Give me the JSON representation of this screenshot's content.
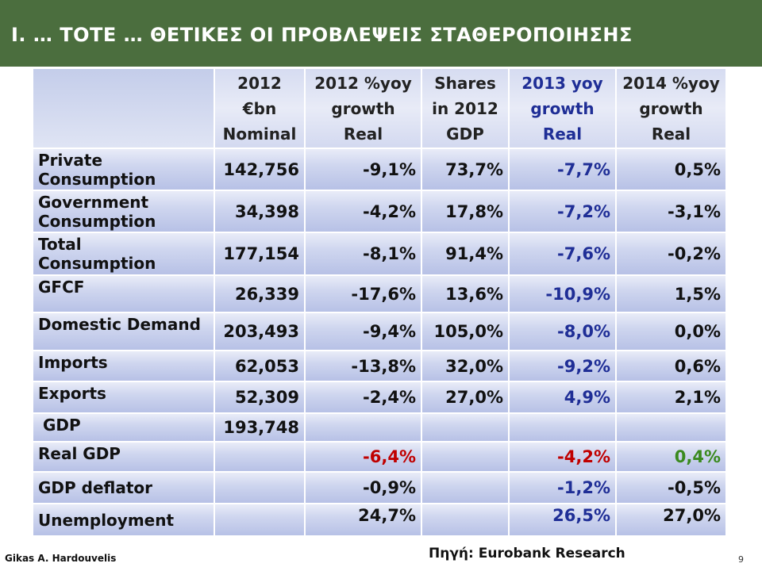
{
  "slide": {
    "title": "I.   … ΤΟΤΕ … ΘΕΤΙΚΕΣ ΟΙ ΠΡΟΒΛΕΨΕΙΣ  ΣΤΑΘΕΡΟΠΟΙΗΣΗΣ",
    "author": "Gikas A. Hardouvelis",
    "source": "Πηγή:  Eurobank Research",
    "page_number": "9"
  },
  "colors": {
    "title_bar": "#4b6e3e",
    "blue_text": "#1f2e96",
    "red_text": "#c00000",
    "green_text": "#3a8a1e"
  },
  "table": {
    "headers": [
      "",
      [
        "2012",
        "€bn",
        "Nominal"
      ],
      [
        "2012 %yoy",
        "growth",
        "Real"
      ],
      [
        "Shares",
        "in 2012",
        "GDP"
      ],
      [
        "2013  yoy",
        "growth",
        "Real"
      ],
      [
        "2014 %yoy",
        "growth",
        "Real"
      ]
    ],
    "rows": [
      {
        "label": [
          "Private",
          "Consumption"
        ],
        "cells": [
          "142,756",
          "-9,1%",
          "73,7%",
          "-7,7%",
          "0,5%"
        ]
      },
      {
        "label": [
          "Government",
          "Consumption"
        ],
        "cells": [
          "34,398",
          "-4,2%",
          "17,8%",
          "-7,2%",
          "-3,1%"
        ]
      },
      {
        "label": [
          "Total",
          "Consumption"
        ],
        "cells": [
          "177,154",
          "-8,1%",
          "91,4%",
          "-7,6%",
          "-0,2%"
        ]
      },
      {
        "label": [
          "GFCF"
        ],
        "cells": [
          "26,339",
          "-17,6%",
          "13,6%",
          "-10,9%",
          "1,5%"
        ]
      },
      {
        "label": [
          "Domestic Demand"
        ],
        "cells": [
          "203,493",
          "-9,4%",
          "105,0%",
          "-8,0%",
          "0,0%"
        ]
      },
      {
        "label": [
          "Imports"
        ],
        "cells": [
          "62,053",
          "-13,8%",
          "32,0%",
          "-9,2%",
          "0,6%"
        ]
      },
      {
        "label": [
          "Exports"
        ],
        "cells": [
          "52,309",
          "-2,4%",
          "27,0%",
          "4,9%",
          "2,1%"
        ]
      },
      {
        "label": [
          "GDP"
        ],
        "cells": [
          "193,748",
          "",
          "",
          "",
          ""
        ]
      },
      {
        "label": [
          "Real GDP"
        ],
        "cells": [
          "",
          "-6,4%",
          "",
          "-4,2%",
          "0,4%"
        ]
      },
      {
        "label": [
          "GDP deflator"
        ],
        "cells": [
          "",
          "-0,9%",
          "",
          "-1,2%",
          "-0,5%"
        ]
      },
      {
        "label": [
          "Unemployment"
        ],
        "cells": [
          "",
          "24,7%",
          "",
          "26,5%",
          "27,0%"
        ]
      }
    ]
  }
}
